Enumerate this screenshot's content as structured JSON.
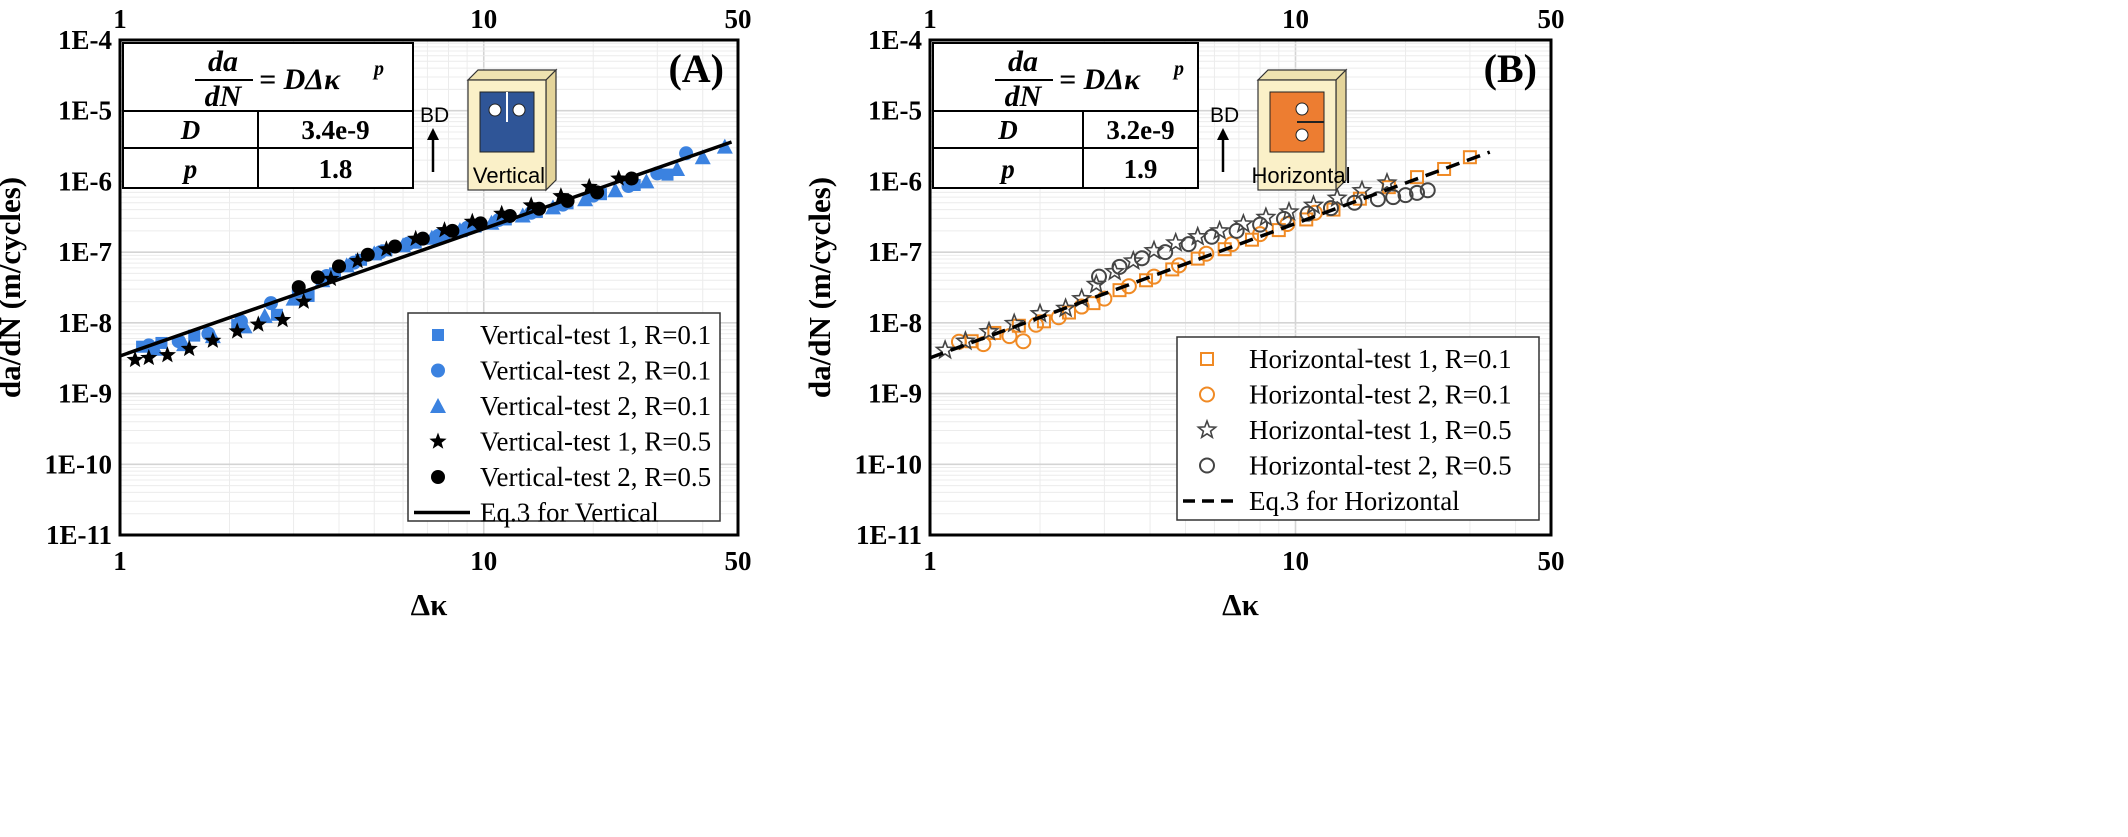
{
  "chart_data": [
    {
      "type": "scatter",
      "panel_label": "(A)",
      "xlabel": "Δκ",
      "ylabel": "da/dN (m/cycles)",
      "xscale": "log",
      "yscale": "log",
      "xlim": [
        1,
        50
      ],
      "ylim": [
        1e-11,
        0.0001
      ],
      "x_ticks": [
        "1",
        "10",
        "50"
      ],
      "y_ticks": [
        "1E-11",
        "1E-10",
        "1E-9",
        "1E-8",
        "1E-7",
        "1E-6",
        "1E-5",
        "1E-4"
      ],
      "grid": true,
      "legend_position": "bottom-right",
      "equation_table": {
        "equation_lhs_num": "da",
        "equation_lhs_den": "dN",
        "equation_rhs": "= DΔκ",
        "equation_exp": "p",
        "rows": [
          {
            "param": "D",
            "value": "3.4e-9"
          },
          {
            "param": "p",
            "value": "1.8"
          }
        ]
      },
      "specimen": {
        "bd_label": "BD",
        "orientation_label": "Vertical",
        "color": "#2f5597"
      },
      "series": [
        {
          "name": "Vertical-test 1, R=0.1",
          "marker": "square",
          "color": "#3b82e0",
          "x": [
            1.15,
            1.3,
            1.6,
            2.1,
            2.7,
            3.3,
            3.9,
            4.6,
            5.4,
            6.5,
            7.8,
            9.5,
            11.5,
            14,
            17,
            21,
            26,
            32
          ],
          "y": [
            4.6e-09,
            5.2e-09,
            6.6e-09,
            9.3e-09,
            1.3e-08,
            2.4e-08,
            5e-08,
            7.8e-08,
            1.06e-07,
            1.36e-07,
            1.75e-07,
            2.3e-07,
            2.9e-07,
            3.7e-07,
            4.9e-07,
            6.6e-07,
            8.9e-07,
            1.25e-06
          ]
        },
        {
          "name": "Vertical-test 2, R=0.1",
          "marker": "circle",
          "color": "#3b82e0",
          "x": [
            1.2,
            1.45,
            1.75,
            2.15,
            2.6,
            3.1,
            3.7,
            4.4,
            5.2,
            6.2,
            7.5,
            9,
            11,
            13.5,
            16.5,
            20,
            25,
            30,
            36
          ],
          "y": [
            4.8e-09,
            5.5e-09,
            7e-09,
            1.05e-08,
            1.9e-08,
            2.8e-08,
            4.6e-08,
            7.1e-08,
            1e-07,
            1.32e-07,
            1.7e-07,
            2.2e-07,
            2.85e-07,
            3.6e-07,
            4.7e-07,
            6.3e-07,
            8.6e-07,
            1.3e-06,
            2.5e-06
          ]
        },
        {
          "name": "Vertical-test 2, R=0.1",
          "marker": "triangle",
          "color": "#3b82e0",
          "x": [
            1.25,
            1.5,
            1.8,
            2.2,
            2.5,
            3.0,
            3.6,
            4.2,
            5.0,
            6.0,
            7.2,
            8.6,
            10.5,
            12.8,
            15.5,
            19,
            23,
            28,
            34,
            40,
            46
          ],
          "y": [
            4.3e-09,
            5e-09,
            6.5e-09,
            8.9e-09,
            1.25e-08,
            2.2e-08,
            4e-08,
            6.5e-08,
            9.6e-08,
            1.25e-07,
            1.6e-07,
            2.05e-07,
            2.6e-07,
            3.3e-07,
            4.3e-07,
            5.6e-07,
            7.5e-07,
            1e-06,
            1.5e-06,
            2.2e-06,
            3.1e-06
          ]
        },
        {
          "name": "Vertical-test 1, R=0.5",
          "marker": "star",
          "color": "#000000",
          "x": [
            1.1,
            1.2,
            1.35,
            1.55,
            1.8,
            2.1,
            2.4,
            2.8,
            3.2,
            3.8,
            4.5,
            5.4,
            6.5,
            7.8,
            9.3,
            11.2,
            13.5,
            16.3,
            19.5,
            23.5
          ],
          "y": [
            3e-09,
            3.2e-09,
            3.5e-09,
            4.3e-09,
            5.6e-09,
            7.6e-09,
            9.5e-09,
            1.1e-08,
            2e-08,
            4.2e-08,
            7.5e-08,
            1.1e-07,
            1.55e-07,
            2.05e-07,
            2.7e-07,
            3.5e-07,
            4.6e-07,
            6.2e-07,
            8.4e-07,
            1.1e-06
          ]
        },
        {
          "name": "Vertical-test 2, R=0.5",
          "marker": "circle",
          "color": "#000000",
          "x": [
            3.1,
            3.5,
            4.0,
            4.8,
            5.7,
            6.8,
            8.2,
            9.8,
            11.8,
            14.2,
            17,
            20.5,
            25.5
          ],
          "y": [
            3.2e-08,
            4.4e-08,
            6.3e-08,
            9.2e-08,
            1.2e-07,
            1.55e-07,
            2e-07,
            2.55e-07,
            3.25e-07,
            4.1e-07,
            5.3e-07,
            7e-07,
            1.1e-06
          ]
        }
      ],
      "fit": {
        "name": "Eq.3 for Vertical",
        "style": "solid",
        "D": 3.4e-09,
        "p": 1.8,
        "x_range": [
          1,
          48
        ]
      }
    },
    {
      "type": "scatter",
      "panel_label": "(B)",
      "xlabel": "Δκ",
      "ylabel": "da/dN (m/cycles)",
      "xscale": "log",
      "yscale": "log",
      "xlim": [
        1,
        50
      ],
      "ylim": [
        1e-11,
        0.0001
      ],
      "x_ticks": [
        "1",
        "10",
        "50"
      ],
      "y_ticks": [
        "1E-11",
        "1E-10",
        "1E-9",
        "1E-8",
        "1E-7",
        "1E-6",
        "1E-5",
        "1E-4"
      ],
      "grid": true,
      "legend_position": "bottom-right",
      "equation_table": {
        "equation_lhs_num": "da",
        "equation_lhs_den": "dN",
        "equation_rhs": "= DΔκ",
        "equation_exp": "p",
        "rows": [
          {
            "param": "D",
            "value": "3.2e-9"
          },
          {
            "param": "p",
            "value": "1.9"
          }
        ]
      },
      "specimen": {
        "bd_label": "BD",
        "orientation_label": "Horizontal",
        "color": "#ed7d31"
      },
      "series": [
        {
          "name": "Horizontal-test 1, R=0.1",
          "marker": "square-open",
          "color": "#f08a24",
          "x": [
            1.3,
            1.5,
            1.75,
            2.05,
            2.4,
            2.8,
            3.3,
            3.9,
            4.6,
            5.4,
            6.4,
            7.6,
            9,
            10.7,
            12.7,
            15,
            18,
            21.5,
            25.5,
            30
          ],
          "y": [
            5.5e-09,
            7.2e-09,
            9.1e-09,
            1.05e-08,
            1.4e-08,
            1.9e-08,
            2.9e-08,
            4e-08,
            5.7e-08,
            8.1e-08,
            1.1e-07,
            1.5e-07,
            2.05e-07,
            2.9e-07,
            4e-07,
            5.7e-07,
            8.3e-07,
            1.15e-06,
            1.5e-06,
            2.2e-06
          ]
        },
        {
          "name": "Horizontal-test 2, R=0.1",
          "marker": "circle-open",
          "color": "#f08a24",
          "x": [
            1.2,
            1.4,
            1.65,
            1.8,
            1.95,
            2.25,
            2.6,
            3.0,
            3.5,
            4.1,
            4.8,
            5.7,
            6.7,
            8.0,
            9.5,
            11.3
          ],
          "y": [
            5.4e-09,
            5e-09,
            6.5e-09,
            5.5e-09,
            9.4e-09,
            1.2e-08,
            1.7e-08,
            2.2e-08,
            3.3e-08,
            4.5e-08,
            6.5e-08,
            9.5e-08,
            1.3e-07,
            1.8e-07,
            2.5e-07,
            3.6e-07
          ]
        },
        {
          "name": "Horizontal-test 1, R=0.5",
          "marker": "star-open",
          "color": "#444444",
          "x": [
            1.1,
            1.25,
            1.45,
            1.7,
            2.0,
            2.35,
            2.6,
            2.85,
            3.2,
            3.6,
            4.1,
            4.7,
            5.4,
            6.2,
            7.2,
            8.3,
            9.6,
            11.2,
            13,
            15.2,
            17.8
          ],
          "y": [
            4.1e-09,
            5.5e-09,
            7.5e-09,
            9.8e-09,
            1.35e-08,
            1.6e-08,
            2.2e-08,
            3.5e-08,
            5.3e-08,
            7.5e-08,
            1.05e-07,
            1.35e-07,
            1.65e-07,
            2e-07,
            2.5e-07,
            3.1e-07,
            3.7e-07,
            4.6e-07,
            5.8e-07,
            7.4e-07,
            9.5e-07
          ]
        },
        {
          "name": "Horizontal-test 2, R=0.5",
          "marker": "circle-open",
          "color": "#444444",
          "x": [
            2.9,
            3.3,
            3.8,
            4.4,
            5.1,
            5.9,
            6.9,
            8.0,
            9.3,
            10.8,
            12.5,
            14.5,
            16.8,
            18.5,
            20,
            21.5,
            23
          ],
          "y": [
            4.5e-08,
            6.2e-08,
            8.2e-08,
            1e-07,
            1.3e-07,
            1.65e-07,
            2e-07,
            2.45e-07,
            2.95e-07,
            3.5e-07,
            4.2e-07,
            5e-07,
            5.6e-07,
            6e-07,
            6.4e-07,
            6.9e-07,
            7.5e-07
          ]
        }
      ],
      "fit": {
        "name": "Eq.3 for Horizontal",
        "style": "dashed",
        "D": 3.2e-09,
        "p": 1.9,
        "x_range": [
          1,
          34
        ]
      }
    }
  ]
}
